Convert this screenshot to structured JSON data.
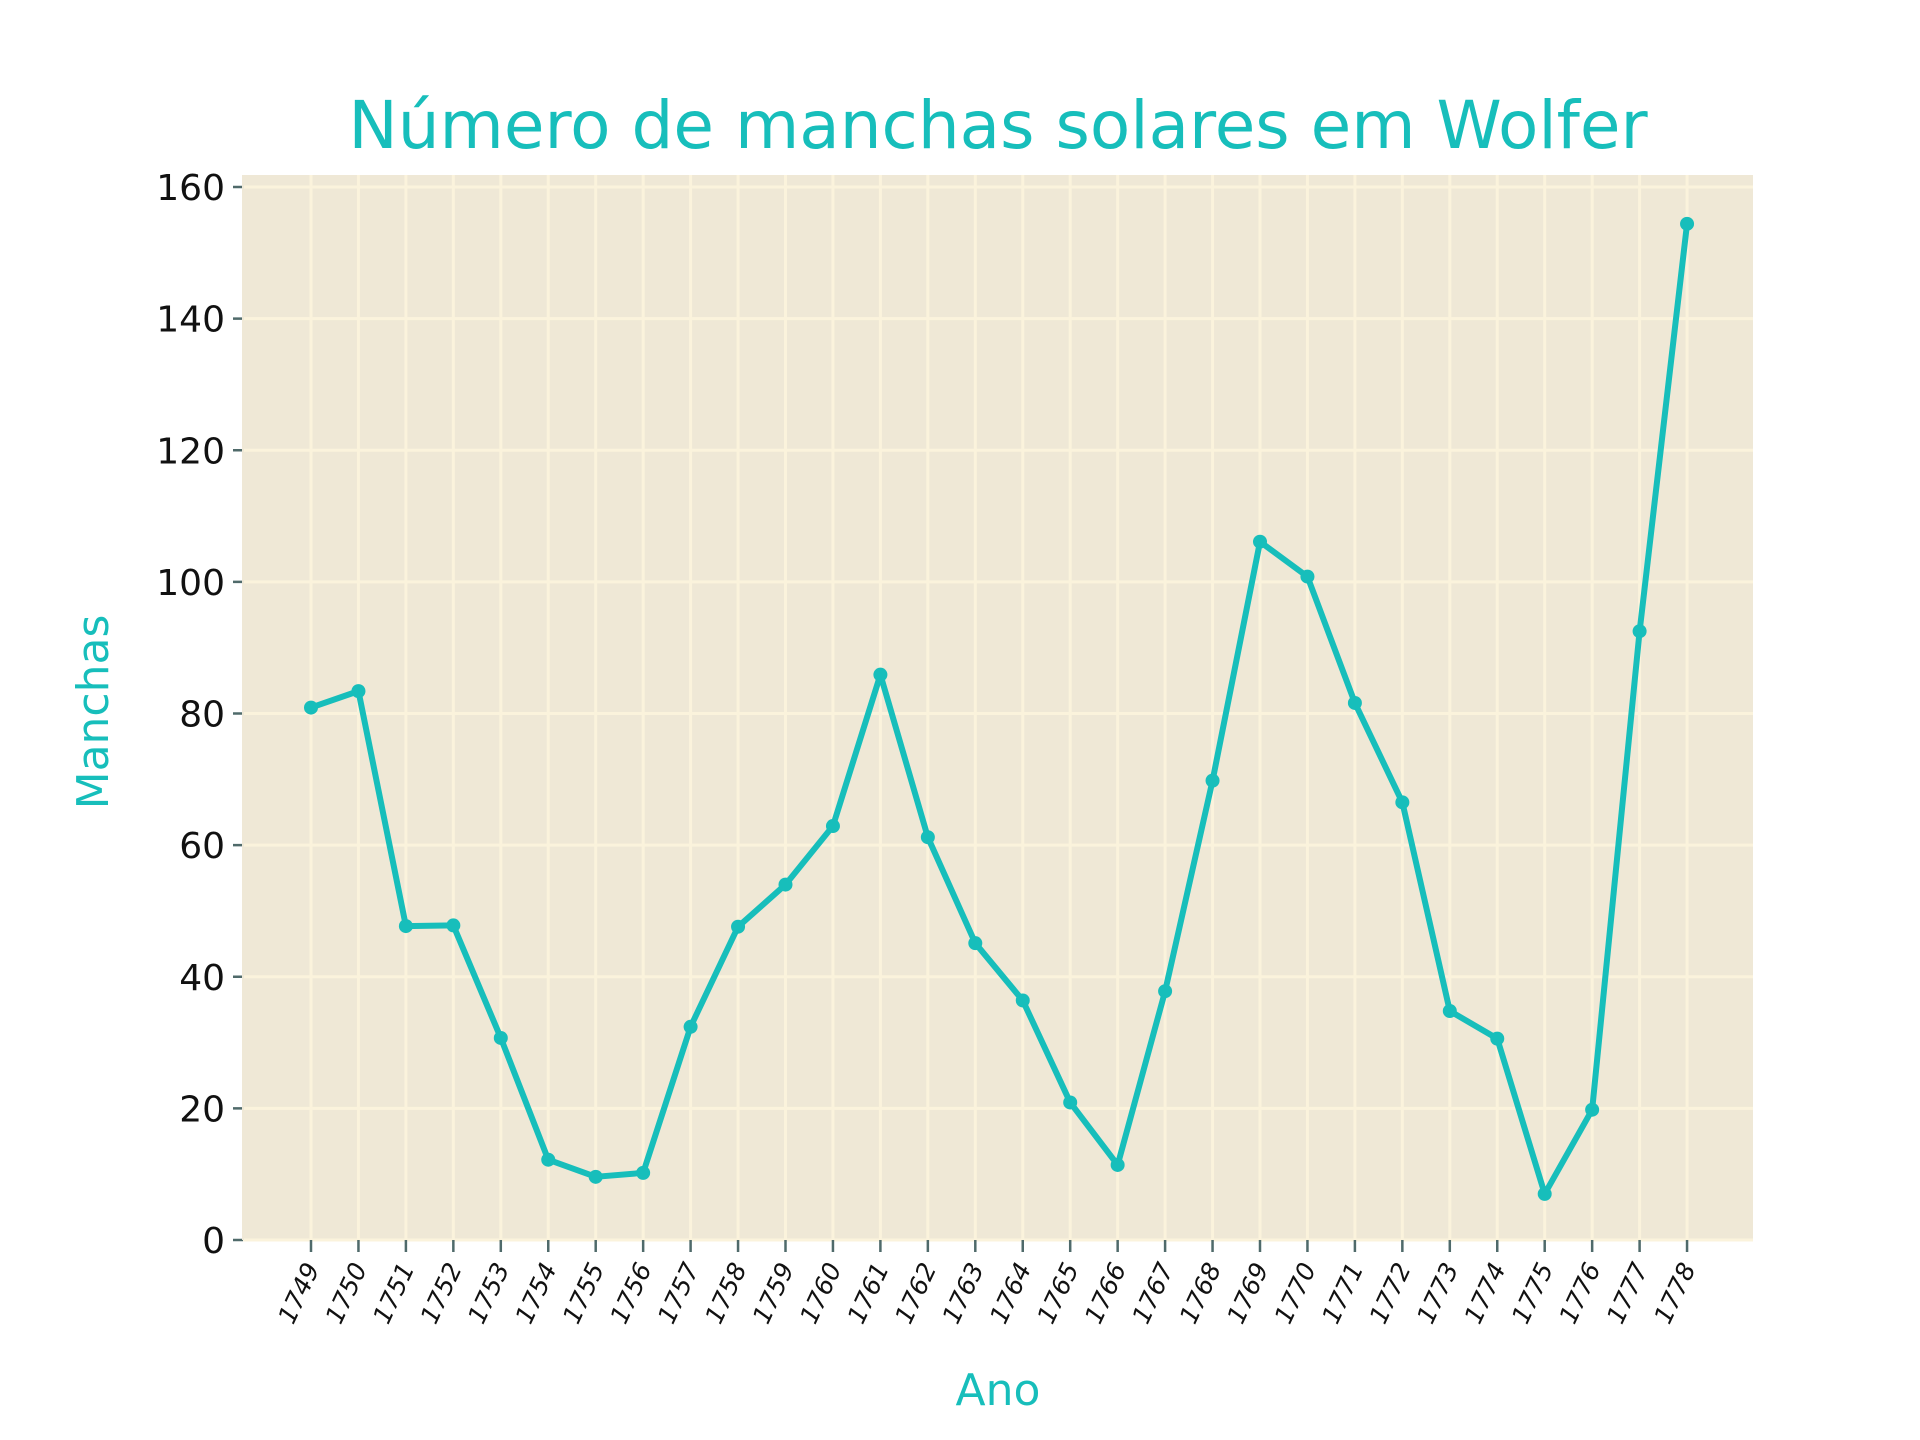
{
  "chart_data": {
    "type": "line",
    "title": "Número de manchas solares em Wolfer",
    "xlabel": "Ano",
    "ylabel": "Manchas",
    "categories": [
      "1749",
      "1750",
      "1751",
      "1752",
      "1753",
      "1754",
      "1755",
      "1756",
      "1757",
      "1758",
      "1759",
      "1760",
      "1761",
      "1762",
      "1763",
      "1764",
      "1765",
      "1766",
      "1767",
      "1768",
      "1769",
      "1770",
      "1771",
      "1772",
      "1773",
      "1774",
      "1775",
      "1776",
      "1777",
      "1778"
    ],
    "series": [
      {
        "values": [
          80.9,
          83.4,
          47.7,
          47.8,
          30.7,
          12.2,
          9.6,
          10.2,
          32.4,
          47.6,
          54.0,
          62.9,
          85.9,
          61.2,
          45.1,
          36.4,
          20.9,
          11.4,
          37.8,
          69.8,
          106.1,
          100.8,
          81.6,
          66.5,
          34.8,
          30.6,
          7.0,
          19.8,
          92.5,
          154.4
        ]
      }
    ],
    "ylim": [
      0,
      162
    ],
    "yticks": [
      0,
      20,
      40,
      60,
      80,
      100,
      120,
      140,
      160
    ],
    "grid": true,
    "legend": "none",
    "colors": {
      "line": "#17bebb",
      "plot_background": "#efe8d6",
      "grid": "#fbf3dc",
      "title": "#17bebb",
      "axis_label": "#17bebb"
    }
  }
}
